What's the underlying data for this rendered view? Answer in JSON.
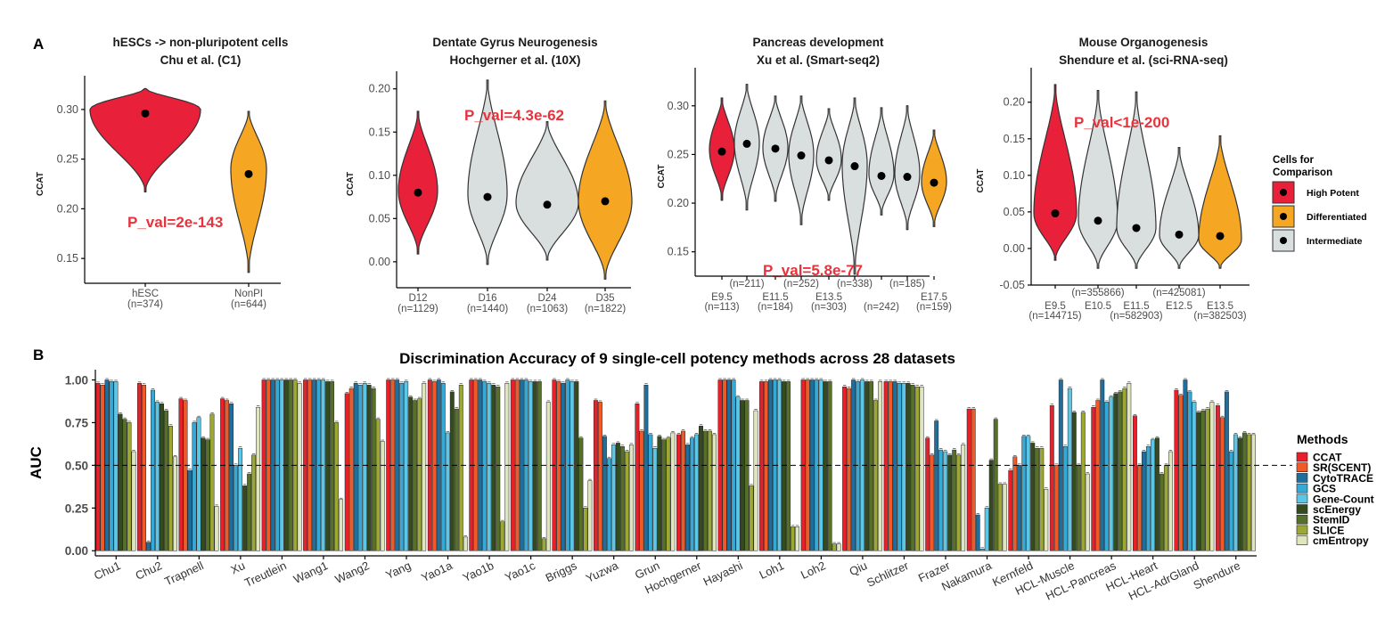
{
  "labels": {
    "panel_a": "A",
    "panel_b": "B"
  },
  "chart_data": [
    {
      "type": "violin",
      "title": [
        "hESCs -> non-pluripotent cells",
        "Chu et al. (C1)"
      ],
      "ylabel": "CCAT",
      "ylim": [
        0.125,
        0.325
      ],
      "yticks": [
        0.15,
        0.2,
        0.25,
        0.3
      ],
      "annotation": "P_val=2e-143",
      "categories": [
        {
          "label": "hESC",
          "count": "(n=374)",
          "group": "high",
          "median": 0.296,
          "min": 0.217,
          "max": 0.321,
          "mode": 0.3
        },
        {
          "label": "NonPI",
          "count": "(n=644)",
          "group": "diff",
          "median": 0.235,
          "min": 0.136,
          "max": 0.298,
          "mode": 0.24
        }
      ]
    },
    {
      "type": "violin",
      "title": [
        "Dentate Gyrus Neurogenesis",
        "Hochgerner et al. (10X)"
      ],
      "ylabel": "CCAT",
      "ylim": [
        -0.03,
        0.21
      ],
      "yticks": [
        0.0,
        0.05,
        0.1,
        0.15,
        0.2
      ],
      "annotation": "P_val=4.3e-62",
      "categories": [
        {
          "label": "D12",
          "count": "(n=1129)",
          "group": "high",
          "median": 0.08,
          "min": 0.009,
          "max": 0.174,
          "mode": 0.082
        },
        {
          "label": "D16",
          "count": "(n=1440)",
          "group": "inter",
          "median": 0.075,
          "min": -0.003,
          "max": 0.21,
          "mode": 0.078
        },
        {
          "label": "D24",
          "count": "(n=1063)",
          "group": "inter",
          "median": 0.066,
          "min": 0.002,
          "max": 0.162,
          "mode": 0.068
        },
        {
          "label": "D35",
          "count": "(n=1822)",
          "group": "diff",
          "median": 0.07,
          "min": -0.02,
          "max": 0.186,
          "mode": 0.07
        }
      ]
    },
    {
      "type": "violin",
      "title": [
        "Pancreas development",
        "Xu et al. (Smart-seq2)"
      ],
      "ylabel": "CCAT",
      "ylim": [
        0.125,
        0.33
      ],
      "yticks": [
        0.15,
        0.2,
        0.25,
        0.3
      ],
      "annotation": "P_val=5.8e-77",
      "categories": [
        {
          "label": "E9.5",
          "count": "(n=113)",
          "group": "high",
          "median": 0.253,
          "min": 0.203,
          "max": 0.308,
          "mode": 0.255
        },
        {
          "label": "",
          "count": "(n=211)",
          "group": "inter",
          "median": 0.261,
          "min": 0.193,
          "max": 0.322,
          "mode": 0.262
        },
        {
          "label": "E11.5",
          "count": "(n=184)",
          "group": "inter",
          "median": 0.256,
          "min": 0.202,
          "max": 0.31,
          "mode": 0.257
        },
        {
          "label": "",
          "count": "(n=252)",
          "group": "inter",
          "median": 0.249,
          "min": 0.178,
          "max": 0.31,
          "mode": 0.25
        },
        {
          "label": "E13.5",
          "count": "(n=303)",
          "group": "inter",
          "median": 0.244,
          "min": 0.203,
          "max": 0.297,
          "mode": 0.245
        },
        {
          "label": "",
          "count": "(n=338)",
          "group": "inter",
          "median": 0.238,
          "min": 0.127,
          "max": 0.308,
          "mode": 0.24
        },
        {
          "label": "",
          "count": "(n=242)",
          "group": "inter",
          "median": 0.228,
          "min": 0.188,
          "max": 0.298,
          "mode": 0.23
        },
        {
          "label": "",
          "count": "(n=185)",
          "group": "inter",
          "median": 0.227,
          "min": 0.173,
          "max": 0.3,
          "mode": 0.23
        },
        {
          "label": "E17.5",
          "count": "(n=159)",
          "group": "diff",
          "median": 0.221,
          "min": 0.176,
          "max": 0.275,
          "mode": 0.222
        }
      ]
    },
    {
      "type": "violin",
      "title": [
        "Mouse Organogenesis",
        "Shendure et al. (sci-RNA-seq)"
      ],
      "ylabel": "CCAT",
      "ylim": [
        -0.05,
        0.235
      ],
      "yticks": [
        -0.05,
        0.0,
        0.05,
        0.1,
        0.15,
        0.2
      ],
      "annotation": "P_val<1e-200",
      "categories": [
        {
          "label": "E9.5",
          "count": "(n=144715)",
          "group": "high",
          "median": 0.048,
          "min": -0.016,
          "max": 0.224,
          "mode": 0.048
        },
        {
          "label": "E10.5",
          "count": "(n=355866)",
          "group": "inter",
          "median": 0.038,
          "min": -0.027,
          "max": 0.216,
          "mode": 0.038
        },
        {
          "label": "E11.5",
          "count": "(n=582903)",
          "group": "inter",
          "median": 0.028,
          "min": -0.027,
          "max": 0.214,
          "mode": 0.028
        },
        {
          "label": "E12.5",
          "count": "(n=425081)",
          "group": "inter",
          "median": 0.019,
          "min": -0.027,
          "max": 0.138,
          "mode": 0.018
        },
        {
          "label": "E13.5",
          "count": "(n=382503)",
          "group": "diff",
          "median": 0.017,
          "min": -0.027,
          "max": 0.154,
          "mode": 0.012
        }
      ]
    },
    {
      "type": "bar",
      "title": "Discrimination Accuracy of 9 single-cell potency methods across 28 datasets",
      "ylabel": "AUC",
      "ylim": [
        -0.03,
        1.06
      ],
      "yticks": [
        "0.00",
        "0.25",
        "0.50",
        "0.75",
        "1.00"
      ],
      "reference_line": 0.5,
      "categories": [
        "Chu1",
        "Chu2",
        "Trapnell",
        "Xu",
        "Treutlein",
        "Wang1",
        "Wang2",
        "Yang",
        "Yao1a",
        "Yao1b",
        "Yao1c",
        "Briggs",
        "Yuzwa",
        "Grun",
        "Hochgerner",
        "Hayashi",
        "Loh1",
        "Loh2",
        "Qiu",
        "Schlitzer",
        "Frazer",
        "Nakamura",
        "Kernfeld",
        "HCL-Muscle",
        "HCL-Pancreas",
        "HCL-Heart",
        "HCL-AdrGland",
        "Shendure"
      ],
      "series": [
        {
          "name": "CCAT",
          "color": "#e8202a",
          "values": [
            0.98,
            0.98,
            0.89,
            0.89,
            1.0,
            1.0,
            0.92,
            1.0,
            1.0,
            1.0,
            1.0,
            1.0,
            0.88,
            0.86,
            0.68,
            1.0,
            0.99,
            1.0,
            0.96,
            0.99,
            0.66,
            0.83,
            0.47,
            0.85,
            0.84,
            0.79,
            0.94,
            0.85
          ]
        },
        {
          "name": "SR(SCENT)",
          "color": "#ef5a28",
          "values": [
            0.97,
            0.97,
            0.88,
            0.88,
            1.0,
            1.0,
            0.95,
            1.0,
            0.99,
            1.0,
            1.0,
            0.99,
            0.87,
            0.7,
            0.7,
            1.0,
            0.99,
            1.0,
            0.95,
            0.99,
            0.56,
            0.83,
            0.55,
            0.5,
            0.88,
            0.5,
            0.91,
            0.78
          ]
        },
        {
          "name": "CytoTRACE",
          "color": "#1f6e9c",
          "values": [
            1.0,
            0.05,
            0.47,
            0.86,
            1.0,
            1.0,
            0.98,
            1.0,
            1.0,
            1.0,
            1.0,
            0.98,
            0.67,
            0.97,
            0.62,
            1.0,
            1.0,
            1.0,
            1.0,
            0.99,
            0.76,
            0.21,
            0.5,
            1.0,
            1.0,
            0.58,
            1.0,
            0.93
          ]
        },
        {
          "name": "GCS",
          "color": "#36a9d6",
          "values": [
            0.99,
            0.94,
            0.75,
            0.5,
            1.0,
            1.0,
            0.97,
            0.98,
            0.98,
            0.99,
            1.0,
            1.0,
            0.54,
            0.68,
            0.66,
            1.0,
            1.0,
            1.0,
            0.99,
            0.98,
            0.59,
            0.01,
            0.67,
            0.61,
            0.87,
            0.61,
            0.93,
            0.58
          ]
        },
        {
          "name": "Gene-Count",
          "color": "#5bc6e6",
          "values": [
            0.99,
            0.87,
            0.78,
            0.6,
            1.0,
            1.0,
            0.98,
            0.99,
            0.69,
            0.98,
            0.99,
            0.99,
            0.62,
            0.6,
            0.68,
            0.9,
            1.0,
            1.0,
            1.0,
            0.98,
            0.58,
            0.25,
            0.67,
            0.95,
            0.9,
            0.65,
            0.87,
            0.68
          ]
        },
        {
          "name": "scEnergy",
          "color": "#344a1f",
          "values": [
            0.8,
            0.86,
            0.66,
            0.38,
            1.0,
            0.99,
            0.97,
            0.9,
            0.93,
            0.97,
            0.99,
            0.99,
            0.63,
            0.67,
            0.73,
            0.88,
            0.99,
            0.99,
            0.99,
            0.98,
            0.56,
            0.53,
            0.63,
            0.81,
            0.92,
            0.66,
            0.81,
            0.66
          ]
        },
        {
          "name": "StemID",
          "color": "#56702a",
          "values": [
            0.77,
            0.82,
            0.65,
            0.45,
            1.0,
            0.99,
            0.95,
            0.88,
            0.83,
            0.96,
            0.99,
            0.66,
            0.61,
            0.65,
            0.7,
            0.88,
            0.99,
            0.99,
            0.99,
            0.97,
            0.59,
            0.77,
            0.6,
            0.5,
            0.93,
            0.45,
            0.82,
            0.69
          ]
        },
        {
          "name": "SLICE",
          "color": "#9ca833",
          "values": [
            0.75,
            0.73,
            0.8,
            0.56,
            1.0,
            0.75,
            0.77,
            0.89,
            0.97,
            0.17,
            0.07,
            0.25,
            0.58,
            0.66,
            0.7,
            0.38,
            0.14,
            0.04,
            0.88,
            0.96,
            0.56,
            0.39,
            0.6,
            0.81,
            0.95,
            0.5,
            0.83,
            0.68
          ]
        },
        {
          "name": "cmEntropy",
          "color": "#dfe6bf",
          "values": [
            0.58,
            0.55,
            0.26,
            0.84,
            0.98,
            0.3,
            0.64,
            0.98,
            0.08,
            0.98,
            0.87,
            0.41,
            0.62,
            0.69,
            0.68,
            0.82,
            0.14,
            0.04,
            0.99,
            0.96,
            0.62,
            0.39,
            0.36,
            0.45,
            0.98,
            0.58,
            0.87,
            0.68
          ]
        }
      ]
    }
  ],
  "legend_cells": {
    "title": [
      "Cells for",
      "Comparison"
    ],
    "items": [
      {
        "label": "High Potent",
        "color": "#e8203a"
      },
      {
        "label": "Differentiated",
        "color": "#f5a623"
      },
      {
        "label": "Intermediate",
        "color": "#d9dedf"
      }
    ]
  },
  "legend_methods": {
    "title": "Methods"
  }
}
